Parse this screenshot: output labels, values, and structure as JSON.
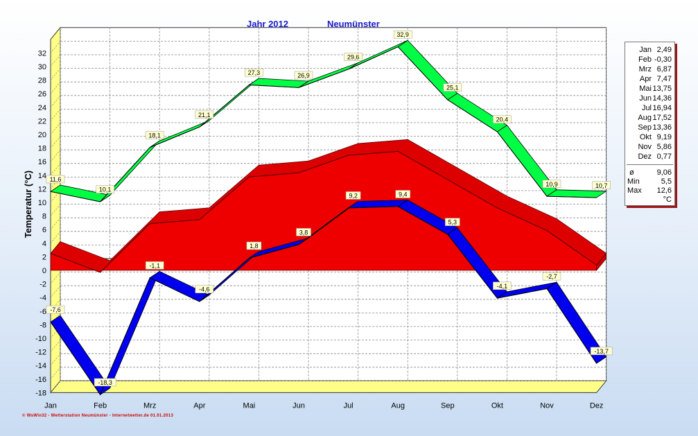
{
  "header": {
    "year_label": "Jahr  2012",
    "station": "Neumünster"
  },
  "chart_data": {
    "type": "area",
    "title": "Jahr  2012",
    "subtitle": "Neumünster",
    "ylabel": "Temperatur  (°C)",
    "xlabel": "",
    "categories": [
      "Jan",
      "Feb",
      "Mrz",
      "Apr",
      "Mai",
      "Jun",
      "Jul",
      "Aug",
      "Sep",
      "Okt",
      "Nov",
      "Dez"
    ],
    "ylim": [
      -18,
      34
    ],
    "yticks": [
      -18,
      -16,
      -14,
      -12,
      -10,
      -8,
      -6,
      -4,
      -2,
      0,
      2,
      4,
      6,
      8,
      10,
      12,
      14,
      16,
      18,
      20,
      22,
      24,
      26,
      28,
      30,
      32
    ],
    "grid": true,
    "series": [
      {
        "values": [
          11.6,
          10.1,
          18.1,
          21.1,
          27.3,
          26.9,
          29.6,
          32.9,
          25.1,
          20.4,
          10.9,
          10.7
        ],
        "labels": [
          "11,6",
          "10,1",
          "18,1",
          "21,1",
          "27,3",
          "26,9",
          "29,6",
          "32,9",
          "25,1",
          "20,4",
          "10,9",
          "10,7"
        ],
        "color": "#00ff44"
      },
      {
        "values": [
          2.49,
          -0.3,
          6.87,
          7.47,
          13.75,
          14.36,
          16.94,
          17.52,
          13.36,
          9.19,
          5.86,
          0.77
        ],
        "color": "#ee0000"
      },
      {
        "values": [
          -7.6,
          -18.3,
          -1.1,
          -4.6,
          1.8,
          3.8,
          9.2,
          9.4,
          5.3,
          -4.1,
          -2.7,
          -13.7
        ],
        "labels": [
          "-7,6",
          "-18,3",
          "-1,1",
          "-4,6",
          "1,8",
          "3,8",
          "9,2",
          "9,4",
          "5,3",
          "-4,1",
          "-2,7",
          "-13,7"
        ],
        "color": "#0000ee"
      }
    ]
  },
  "stats": {
    "months": [
      {
        "m": "Jan",
        "v": "2,49"
      },
      {
        "m": "Feb",
        "v": "-0,30"
      },
      {
        "m": "Mrz",
        "v": "6,87"
      },
      {
        "m": "Apr",
        "v": "7,47"
      },
      {
        "m": "Mai",
        "v": "13,75"
      },
      {
        "m": "Jun",
        "v": "14,36"
      },
      {
        "m": "Jul",
        "v": "16,94"
      },
      {
        "m": "Aug",
        "v": "17,52"
      },
      {
        "m": "Sep",
        "v": "13,36"
      },
      {
        "m": "Okt",
        "v": "9,19"
      },
      {
        "m": "Nov",
        "v": "5,86"
      },
      {
        "m": "Dez",
        "v": "0,77"
      }
    ],
    "avg_label": "ø",
    "avg": "9,06",
    "min_label": "Min",
    "min": "5,5",
    "max_label": "Max",
    "max": "12,6",
    "unit": "°C"
  },
  "footer": "© WsWin32 - Wetterstation Neumünster - Internetwetter.de  01.01.2013"
}
